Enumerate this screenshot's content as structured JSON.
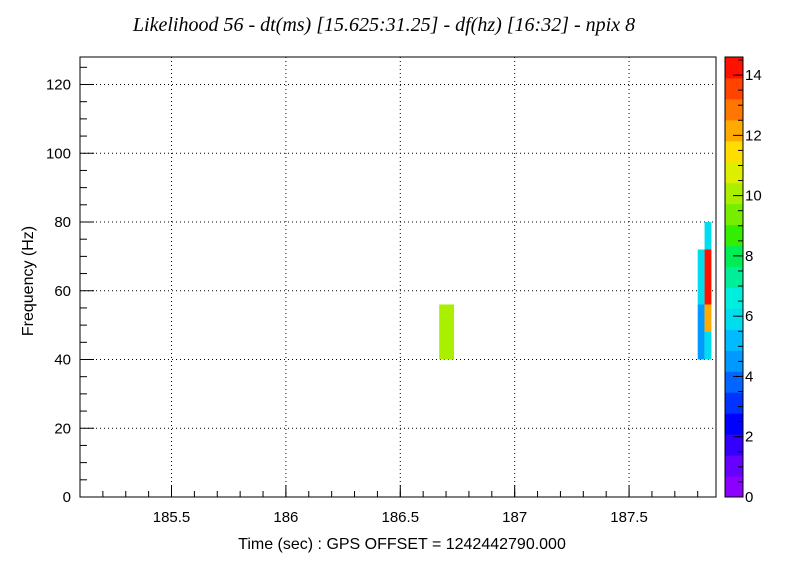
{
  "chart_data": {
    "type": "heatmap",
    "title": "Likelihood  56 - dt(ms) [15.625:31.25] - df(hz) [16:32] - npix 8",
    "xlabel": "Time (sec) : GPS OFFSET = 1242442790.000",
    "ylabel": "Frequency (Hz)",
    "xlim": [
      185.1,
      187.88
    ],
    "ylim": [
      0,
      128
    ],
    "x_ticks": [
      "185.5",
      "186",
      "186.5",
      "187",
      "187.5"
    ],
    "y_ticks": [
      "0",
      "20",
      "40",
      "60",
      "80",
      "100",
      "120"
    ],
    "grid": true,
    "colorbar": {
      "range": [
        0,
        14.6
      ],
      "ticks": [
        "0",
        "2",
        "4",
        "6",
        "8",
        "10",
        "12",
        "14"
      ],
      "palette": [
        "#8b00ff",
        "#6600ff",
        "#3300ff",
        "#0000ff",
        "#0033ff",
        "#0066ff",
        "#0099ff",
        "#00bbff",
        "#00ddee",
        "#00eedd",
        "#00ee99",
        "#00ee55",
        "#33ee00",
        "#77ee00",
        "#aaee00",
        "#ddee00",
        "#ffdd00",
        "#ffaa00",
        "#ff7700",
        "#ff4400",
        "#ff1100"
      ]
    },
    "cells": [
      {
        "t0": 186.67,
        "t1": 186.735,
        "f0": 40,
        "f1": 56,
        "value": 10.2
      },
      {
        "t0": 187.8,
        "t1": 187.83,
        "f0": 40,
        "f1": 56,
        "value": 4.2
      },
      {
        "t0": 187.8,
        "t1": 187.83,
        "f0": 56,
        "f1": 72,
        "value": 6.0
      },
      {
        "t0": 187.83,
        "t1": 187.86,
        "f0": 40,
        "f1": 48,
        "value": 6.2
      },
      {
        "t0": 187.83,
        "t1": 187.86,
        "f0": 48,
        "f1": 56,
        "value": 12.2
      },
      {
        "t0": 187.83,
        "t1": 187.86,
        "f0": 56,
        "f1": 72,
        "value": 14.5
      },
      {
        "t0": 187.83,
        "t1": 187.86,
        "f0": 72,
        "f1": 80,
        "value": 5.6
      }
    ]
  }
}
